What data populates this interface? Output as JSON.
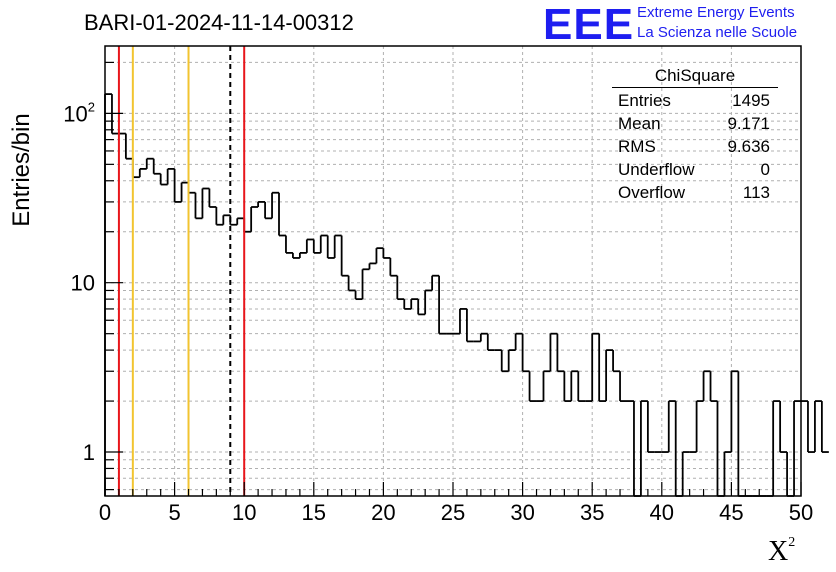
{
  "title": "BARI-01-2024-11-14-00312",
  "logo": {
    "mark": "EEE",
    "line1": "Extreme Energy Events",
    "line2": "La Scienza nelle Scuole"
  },
  "axes": {
    "ylabel": "Entries/bin",
    "xlabel_base": "X",
    "xlabel_sup": "2"
  },
  "stats": {
    "title": "ChiSquare",
    "rows": [
      {
        "label": "Entries",
        "value": "1495"
      },
      {
        "label": "Mean",
        "value": "9.171"
      },
      {
        "label": "RMS",
        "value": "9.636"
      },
      {
        "label": "Underflow",
        "value": "0"
      },
      {
        "label": "Overflow",
        "value": "113"
      }
    ]
  },
  "colors": {
    "accent_red": "#e8161b",
    "accent_yellow": "#f2c430",
    "logo_blue": "#1e1ef0",
    "grid": "#b0b0b0"
  },
  "chart_data": {
    "type": "histogram",
    "xlabel": "X²",
    "ylabel": "Entries/bin",
    "xlim": [
      0,
      50
    ],
    "ylim": [
      0.55,
      250
    ],
    "yscale": "log",
    "grid": true,
    "bin_width": 0.5,
    "x_ticks": [
      0,
      5,
      10,
      15,
      20,
      25,
      30,
      35,
      40,
      45,
      50
    ],
    "y_ticks": [
      {
        "value": 1,
        "label": "1"
      },
      {
        "value": 10,
        "label": "10"
      },
      {
        "value": 100,
        "label": "10²"
      }
    ],
    "values": [
      130,
      76,
      76,
      54,
      42,
      47,
      54,
      44,
      38,
      47,
      30,
      39,
      34,
      24,
      36,
      28,
      22,
      25,
      22,
      24,
      20,
      28,
      30,
      24,
      34,
      19,
      15,
      14,
      15,
      18,
      15,
      19,
      14,
      19,
      11,
      9,
      8,
      12,
      13,
      16,
      14,
      11,
      8,
      7,
      8,
      6.5,
      9,
      11,
      5,
      5,
      5,
      7,
      4.5,
      4.5,
      5,
      4,
      4,
      3,
      4,
      5,
      3,
      2,
      2,
      3,
      5,
      3,
      2,
      3,
      2,
      2,
      5,
      2,
      4,
      3,
      2,
      2,
      0.5,
      2,
      1,
      1,
      1,
      2,
      0.5,
      1,
      1,
      2,
      3,
      2,
      0.5,
      1,
      3,
      0.5,
      0.5,
      0.5,
      0.5,
      0.5,
      2,
      1,
      0.5,
      2,
      2,
      1,
      2,
      1
    ],
    "reference_lines": [
      {
        "x": 1,
        "color": "red",
        "style": "solid"
      },
      {
        "x": 2,
        "color": "yellow",
        "style": "solid"
      },
      {
        "x": 6,
        "color": "yellow",
        "style": "solid"
      },
      {
        "x": 9,
        "color": "black",
        "style": "dashed"
      },
      {
        "x": 10,
        "color": "red",
        "style": "solid"
      }
    ]
  }
}
